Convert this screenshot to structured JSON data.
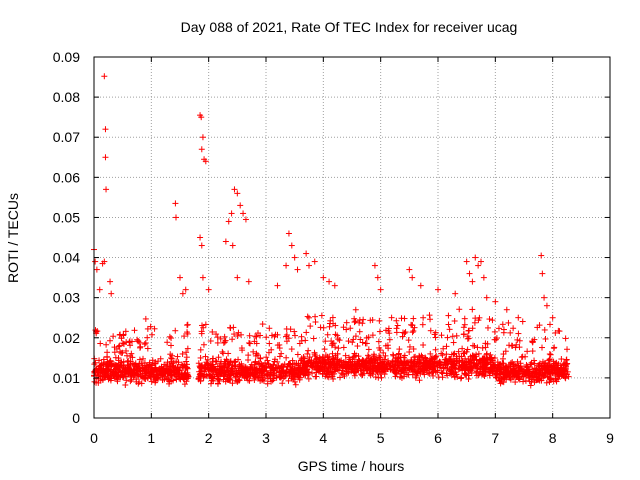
{
  "chart_data": {
    "type": "scatter",
    "title": "Day 088 of 2021, Rate Of TEC Index for receiver ucag",
    "xlabel": "GPS time / hours",
    "ylabel": "ROTI / TECUs",
    "xlim": [
      0,
      9
    ],
    "ylim": [
      0,
      0.09
    ],
    "x_ticks": [
      "0",
      "1",
      "2",
      "3",
      "4",
      "5",
      "6",
      "7",
      "8",
      "9"
    ],
    "y_ticks": [
      "0",
      "0.01",
      "0.02",
      "0.03",
      "0.04",
      "0.05",
      "0.06",
      "0.07",
      "0.08",
      "0.09"
    ],
    "grid": true,
    "marker": "+",
    "color": "#ff0000",
    "series": [
      {
        "name": "ROTI",
        "points": [
          [
            0.0,
            0.042
          ],
          [
            0.02,
            0.039
          ],
          [
            0.05,
            0.037
          ],
          [
            0.1,
            0.032
          ],
          [
            0.15,
            0.0385
          ],
          [
            0.18,
            0.039
          ],
          [
            0.18,
            0.0852
          ],
          [
            0.2,
            0.072
          ],
          [
            0.2,
            0.065
          ],
          [
            0.21,
            0.057
          ],
          [
            0.28,
            0.034
          ],
          [
            0.3,
            0.031
          ],
          [
            1.42,
            0.0535
          ],
          [
            1.43,
            0.05
          ],
          [
            1.5,
            0.035
          ],
          [
            1.55,
            0.031
          ],
          [
            1.6,
            0.032
          ],
          [
            1.85,
            0.0755
          ],
          [
            1.87,
            0.075
          ],
          [
            1.9,
            0.07
          ],
          [
            1.88,
            0.067
          ],
          [
            1.92,
            0.0645
          ],
          [
            1.95,
            0.064
          ],
          [
            1.85,
            0.045
          ],
          [
            1.88,
            0.043
          ],
          [
            1.9,
            0.035
          ],
          [
            2.0,
            0.032
          ],
          [
            2.3,
            0.044
          ],
          [
            2.35,
            0.049
          ],
          [
            2.4,
            0.051
          ],
          [
            2.45,
            0.057
          ],
          [
            2.5,
            0.056
          ],
          [
            2.55,
            0.053
          ],
          [
            2.6,
            0.051
          ],
          [
            2.65,
            0.0495
          ],
          [
            2.42,
            0.043
          ],
          [
            2.5,
            0.035
          ],
          [
            2.7,
            0.034
          ],
          [
            3.2,
            0.033
          ],
          [
            3.35,
            0.038
          ],
          [
            3.4,
            0.046
          ],
          [
            3.45,
            0.043
          ],
          [
            3.5,
            0.04
          ],
          [
            3.55,
            0.037
          ],
          [
            3.7,
            0.041
          ],
          [
            3.75,
            0.038
          ],
          [
            3.85,
            0.039
          ],
          [
            4.0,
            0.035
          ],
          [
            4.1,
            0.034
          ],
          [
            4.2,
            0.033
          ],
          [
            4.9,
            0.038
          ],
          [
            4.95,
            0.035
          ],
          [
            5.0,
            0.032
          ],
          [
            5.5,
            0.037
          ],
          [
            5.55,
            0.035
          ],
          [
            5.7,
            0.033
          ],
          [
            6.0,
            0.032
          ],
          [
            6.3,
            0.031
          ],
          [
            6.5,
            0.039
          ],
          [
            6.55,
            0.036
          ],
          [
            6.6,
            0.034
          ],
          [
            6.65,
            0.04
          ],
          [
            6.7,
            0.038
          ],
          [
            6.75,
            0.039
          ],
          [
            6.8,
            0.035
          ],
          [
            6.85,
            0.03
          ],
          [
            7.0,
            0.029
          ],
          [
            7.2,
            0.027
          ],
          [
            7.8,
            0.0405
          ],
          [
            7.82,
            0.036
          ],
          [
            7.85,
            0.03
          ],
          [
            7.9,
            0.028
          ],
          [
            8.0,
            0.025
          ]
        ]
      }
    ]
  }
}
